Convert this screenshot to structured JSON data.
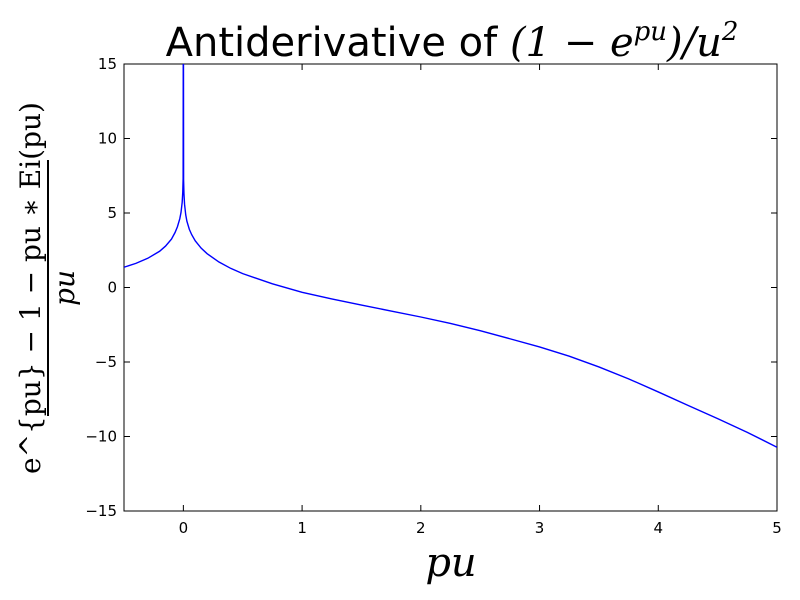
{
  "chart_data": {
    "type": "line",
    "title_text": "Antiderivative of ",
    "title_math": "(1 − e",
    "title_math_sup": "pu",
    "title_math_end": ")/u",
    "title_math_sup2": "2",
    "xlabel": "pu",
    "ylabel_numerator": "e^{pu} − 1 − pu ∗ Ei(pu)",
    "ylabel_denominator": "pu",
    "xlim": [
      -0.5,
      5
    ],
    "ylim": [
      -15,
      15
    ],
    "xticks": [
      0,
      1,
      2,
      3,
      4,
      5
    ],
    "yticks": [
      -15,
      -10,
      -5,
      0,
      5,
      10,
      15
    ],
    "grid": false,
    "series": [
      {
        "color": "#0000ff",
        "x": [
          -0.5,
          -0.4,
          -0.3,
          -0.2,
          -0.15,
          -0.1,
          -0.07,
          -0.05,
          -0.03,
          -0.02,
          -0.01,
          -0.005,
          -0.002,
          -0.001,
          0.001,
          0.002,
          0.005,
          0.01,
          0.02,
          0.03,
          0.05,
          0.07,
          0.1,
          0.15,
          0.2,
          0.3,
          0.4,
          0.5,
          0.75,
          1.0,
          1.25,
          1.5,
          1.75,
          2.0,
          2.25,
          2.5,
          2.75,
          3.0,
          3.25,
          3.5,
          3.75,
          4.0,
          4.25,
          4.5,
          4.75,
          5.0
        ],
        "y": [
          1.36,
          1.62,
          1.96,
          2.43,
          2.78,
          3.25,
          3.69,
          4.08,
          4.62,
          5.03,
          5.72,
          6.41,
          7.33,
          15.0,
          15.0,
          7.22,
          6.29,
          5.59,
          4.87,
          4.44,
          3.91,
          3.55,
          3.13,
          2.64,
          2.27,
          1.71,
          1.28,
          0.93,
          0.25,
          -0.32,
          -0.77,
          -1.18,
          -1.58,
          -1.98,
          -2.41,
          -2.9,
          -3.44,
          -3.99,
          -4.61,
          -5.33,
          -6.13,
          -7.01,
          -7.91,
          -8.8,
          -9.72,
          -10.72
        ]
      }
    ]
  }
}
